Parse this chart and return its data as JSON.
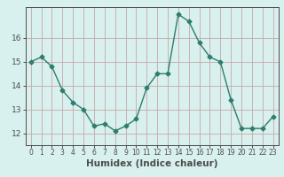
{
  "x": [
    0,
    1,
    2,
    3,
    4,
    5,
    6,
    7,
    8,
    9,
    10,
    11,
    12,
    13,
    14,
    15,
    16,
    17,
    18,
    19,
    20,
    21,
    22,
    23
  ],
  "y": [
    15.0,
    15.2,
    14.8,
    13.8,
    13.3,
    13.0,
    12.3,
    12.4,
    12.1,
    12.3,
    12.6,
    13.9,
    14.5,
    14.5,
    17.0,
    16.7,
    15.8,
    15.2,
    15.0,
    13.4,
    12.2,
    12.2,
    12.2,
    12.7
  ],
  "xlabel": "Humidex (Indice chaleur)",
  "ylabel": "",
  "ylim": [
    11.5,
    17.3
  ],
  "yticks": [
    12,
    13,
    14,
    15,
    16
  ],
  "xticks": [
    0,
    1,
    2,
    3,
    4,
    5,
    6,
    7,
    8,
    9,
    10,
    11,
    12,
    13,
    14,
    15,
    16,
    17,
    18,
    19,
    20,
    21,
    22,
    23
  ],
  "line_color": "#2e7d6e",
  "marker": "D",
  "marker_size": 2.5,
  "bg_color": "#d8f0ee",
  "grid_color": "#c8a8a8",
  "axis_color": "#4d4d4d",
  "xlabel_fontsize": 7.5,
  "tick_fontsize": 6.5
}
